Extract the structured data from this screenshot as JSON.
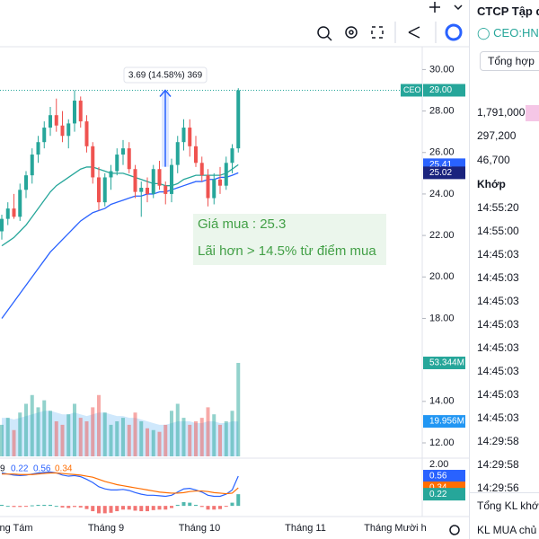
{
  "chart_data": {
    "type": "candlestick",
    "candles": [
      [
        22.2,
        23,
        21.8,
        22.8
      ],
      [
        22.8,
        23.6,
        22.5,
        23.3
      ],
      [
        23.3,
        24,
        22.8,
        22.9
      ],
      [
        22.9,
        24.5,
        22.7,
        24.2
      ],
      [
        24.2,
        25.1,
        23.8,
        24.9
      ],
      [
        24.9,
        26.2,
        24.5,
        25.9
      ],
      [
        25.9,
        26.8,
        25.5,
        26.5
      ],
      [
        26.5,
        27.5,
        26.2,
        27.2
      ],
      [
        27.2,
        28.2,
        26.8,
        27.8
      ],
      [
        27.8,
        28.6,
        27,
        27.3
      ],
      [
        27.3,
        28,
        26.5,
        26.8
      ],
      [
        26.8,
        27.6,
        26.2,
        27.4
      ],
      [
        27.4,
        29,
        27,
        28.5
      ],
      [
        28.5,
        28.7,
        27.2,
        27.5
      ],
      [
        27.5,
        27.8,
        26,
        26.3
      ],
      [
        26.3,
        26.5,
        24.5,
        24.8
      ],
      [
        24.8,
        25.3,
        23.2,
        23.6
      ],
      [
        23.6,
        25,
        23.4,
        24.8
      ],
      [
        24.8,
        25.4,
        24.2,
        25.1
      ],
      [
        25.1,
        26.2,
        24.9,
        25.9
      ],
      [
        25.9,
        26.6,
        25.4,
        26.2
      ],
      [
        26.2,
        26.5,
        25,
        25.2
      ],
      [
        25.2,
        25.4,
        23.8,
        24.1
      ],
      [
        24.1,
        24.6,
        22.9,
        24.3
      ],
      [
        24.3,
        24.8,
        23.6,
        24
      ],
      [
        24,
        25.4,
        23.8,
        25.2
      ],
      [
        25.2,
        25.6,
        24.2,
        24.4
      ],
      [
        24.4,
        24.6,
        23.5,
        24
      ],
      [
        24,
        25.7,
        23.6,
        25.4
      ],
      [
        25.4,
        26.8,
        25,
        26.5
      ],
      [
        26.5,
        27.6,
        26.1,
        27.2
      ],
      [
        27.2,
        27.6,
        25.8,
        26.3
      ],
      [
        26.3,
        26.8,
        25.3,
        25.5
      ],
      [
        25.5,
        25.8,
        24.6,
        24.9
      ],
      [
        24.9,
        25.2,
        23.4,
        23.8
      ],
      [
        23.8,
        25,
        23.5,
        24.7
      ],
      [
        24.7,
        25.3,
        24,
        24.4
      ],
      [
        24.4,
        25.8,
        24.2,
        25.5
      ],
      [
        25.5,
        26.4,
        25,
        26.2
      ],
      [
        26.2,
        29.1,
        26,
        29
      ]
    ],
    "ma20": [
      21.5,
      21.7,
      21.9,
      22.2,
      22.5,
      22.9,
      23.3,
      23.7,
      24.1,
      24.4,
      24.6,
      24.8,
      25,
      25.2,
      25.3,
      25.3,
      25.2,
      25.1,
      25,
      25,
      25,
      24.9,
      24.8,
      24.7,
      24.6,
      24.5,
      24.5,
      24.4,
      24.4,
      24.5,
      24.7,
      24.8,
      24.9,
      24.9,
      24.9,
      24.9,
      24.9,
      25,
      25.2,
      25.41
    ],
    "ma50": [
      18,
      18.4,
      18.8,
      19.2,
      19.6,
      20,
      20.4,
      20.8,
      21.2,
      21.5,
      21.8,
      22.1,
      22.4,
      22.7,
      22.9,
      23.1,
      23.2,
      23.3,
      23.5,
      23.6,
      23.7,
      23.8,
      23.9,
      23.9,
      24,
      24,
      24.1,
      24.1,
      24.2,
      24.3,
      24.4,
      24.5,
      24.6,
      24.6,
      24.7,
      24.7,
      24.8,
      24.8,
      24.9,
      25.02
    ],
    "ylim": [
      11.35,
      31.1
    ],
    "yticks": [
      {
        "value": 30,
        "label": "30.00"
      },
      {
        "value": 28,
        "label": "28.00"
      },
      {
        "value": 26,
        "label": "26.00"
      },
      {
        "value": 24,
        "label": "24.00"
      },
      {
        "value": 22,
        "label": "22.00"
      },
      {
        "value": 20,
        "label": "20.00"
      },
      {
        "value": 18,
        "label": "18.00"
      },
      {
        "value": 14,
        "label": "14.00"
      },
      {
        "value": 12,
        "label": "12.00"
      }
    ],
    "price_tags": [
      {
        "value": 29,
        "label": "29.00",
        "name": "CEO",
        "color": "#26a69a"
      },
      {
        "value": 25.41,
        "label": "25.41",
        "color": "#2962ff"
      },
      {
        "value": 25.02,
        "label": "25.02",
        "color": "#1a237e"
      }
    ],
    "volume": [
      18,
      22,
      15,
      25,
      30,
      35,
      28,
      32,
      26,
      20,
      18,
      24,
      30,
      22,
      20,
      28,
      35,
      25,
      18,
      20,
      22,
      18,
      25,
      20,
      16,
      15,
      14,
      18,
      26,
      30,
      22,
      18,
      20,
      22,
      28,
      24,
      18,
      20,
      26,
      53.344
    ],
    "volume_ma": [
      22,
      22,
      21,
      22,
      23,
      24,
      25,
      26,
      26,
      25,
      24,
      24,
      25,
      24,
      23,
      24,
      25,
      25,
      24,
      23,
      23,
      22,
      22,
      21,
      20,
      19,
      18,
      18,
      19,
      20,
      20,
      20,
      19,
      19,
      20,
      20,
      19,
      19,
      20,
      19.956
    ],
    "volume_ylim": [
      0,
      60
    ],
    "volume_tags": [
      {
        "value": 53.344,
        "label": "53.344M",
        "color": "#26a69a"
      },
      {
        "value": 19.956,
        "label": "19.956M",
        "color": "#2196f3"
      }
    ],
    "macd": {
      "line": [
        0.62,
        0.6,
        0.58,
        0.57,
        0.58,
        0.6,
        0.62,
        0.63,
        0.64,
        0.62,
        0.58,
        0.56,
        0.57,
        0.55,
        0.5,
        0.44,
        0.36,
        0.32,
        0.3,
        0.3,
        0.31,
        0.29,
        0.25,
        0.22,
        0.2,
        0.2,
        0.19,
        0.18,
        0.2,
        0.26,
        0.32,
        0.33,
        0.3,
        0.26,
        0.2,
        0.18,
        0.18,
        0.22,
        0.3,
        0.56
      ],
      "signal": [
        0.6,
        0.6,
        0.6,
        0.59,
        0.59,
        0.59,
        0.6,
        0.61,
        0.62,
        0.62,
        0.61,
        0.6,
        0.59,
        0.58,
        0.56,
        0.54,
        0.5,
        0.46,
        0.43,
        0.4,
        0.38,
        0.36,
        0.34,
        0.32,
        0.3,
        0.28,
        0.26,
        0.25,
        0.24,
        0.24,
        0.25,
        0.27,
        0.28,
        0.28,
        0.27,
        0.25,
        0.24,
        0.23,
        0.24,
        0.34
      ],
      "histogram": [
        0.02,
        0,
        -0.02,
        -0.02,
        -0.01,
        0.01,
        0.02,
        0.02,
        0.02,
        0,
        -0.03,
        -0.04,
        -0.02,
        -0.03,
        -0.06,
        -0.1,
        -0.14,
        -0.14,
        -0.13,
        -0.1,
        -0.07,
        -0.07,
        -0.09,
        -0.1,
        -0.1,
        -0.08,
        -0.07,
        -0.07,
        -0.04,
        0.02,
        0.07,
        0.06,
        0.02,
        -0.02,
        -0.07,
        -0.07,
        -0.06,
        -0.01,
        0.06,
        0.22
      ],
      "ylim": [
        -0.15,
        0.865
      ],
      "axis_label": "2.00",
      "legend": [
        "9",
        "0.22",
        "0.56",
        "0.34"
      ],
      "tags": [
        {
          "value": 0.56,
          "label": "0.56",
          "color": "#2962ff"
        },
        {
          "value": 0.34,
          "label": "0.34",
          "color": "#ff6d00"
        },
        {
          "value": 0.22,
          "label": "0.22",
          "color": "#26a69a"
        }
      ]
    },
    "x_labels": [
      "ng Tám",
      "Tháng 9",
      "Tháng 10",
      "Tháng 11",
      "Tháng Mười h"
    ],
    "measure": {
      "text": "3.69 (14.58%) 369",
      "from": 25.31,
      "to": 29
    },
    "note": [
      "Giá mua : 25.3",
      "Lãi hơn > 14.5% từ điểm mua"
    ]
  },
  "sidebar": {
    "title": "CTCP Tập đ",
    "symbol": "CEO:HNX",
    "button": "Tổng hợp",
    "stats": [
      "1,791,000",
      "297,200",
      "46,700"
    ],
    "header": "Khớp",
    "times": [
      "14:55:20",
      "14:55:00",
      "14:45:03",
      "14:45:03",
      "14:45:03",
      "14:45:03",
      "14:45:03",
      "14:45:03",
      "14:45:03",
      "14:45:03",
      "14:29:58",
      "14:29:58",
      "14:29:56"
    ],
    "footer": [
      "Tổng KL khớp",
      "KL MUA chủ đ"
    ]
  }
}
